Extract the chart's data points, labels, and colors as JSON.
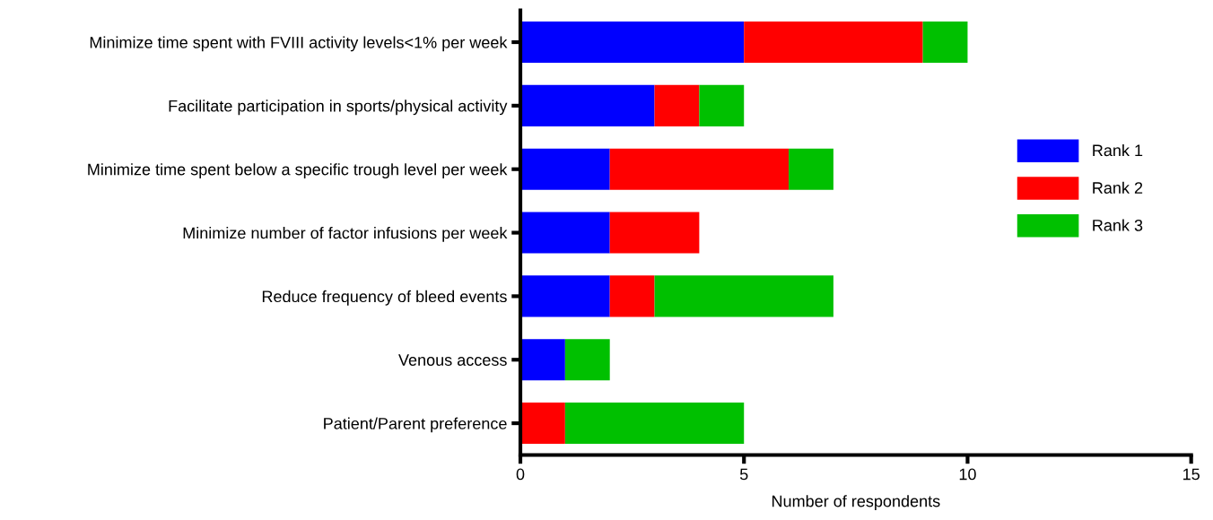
{
  "chart_data": {
    "type": "bar",
    "orientation": "horizontal",
    "stacked": true,
    "categories": [
      "Minimize time spent with FVIII activity levels<1% per week",
      "Facilitate participation in sports/physical activity",
      "Minimize time spent below a specific trough level per week",
      "Minimize number of factor infusions per week",
      "Reduce frequency of bleed events",
      "Venous access",
      "Patient/Parent preference"
    ],
    "series": [
      {
        "name": "Rank 1",
        "color": "#0000ff",
        "values": [
          5,
          3,
          2,
          2,
          2,
          1,
          0
        ]
      },
      {
        "name": "Rank 2",
        "color": "#ff0000",
        "values": [
          4,
          1,
          4,
          2,
          1,
          0,
          1
        ]
      },
      {
        "name": "Rank 3",
        "color": "#00c000",
        "values": [
          1,
          1,
          1,
          0,
          4,
          1,
          4
        ]
      }
    ],
    "xlabel": "Number of respondents",
    "xlim": [
      0,
      15
    ],
    "xticks": [
      0,
      5,
      10,
      15
    ],
    "grid": false,
    "legend": "right"
  }
}
